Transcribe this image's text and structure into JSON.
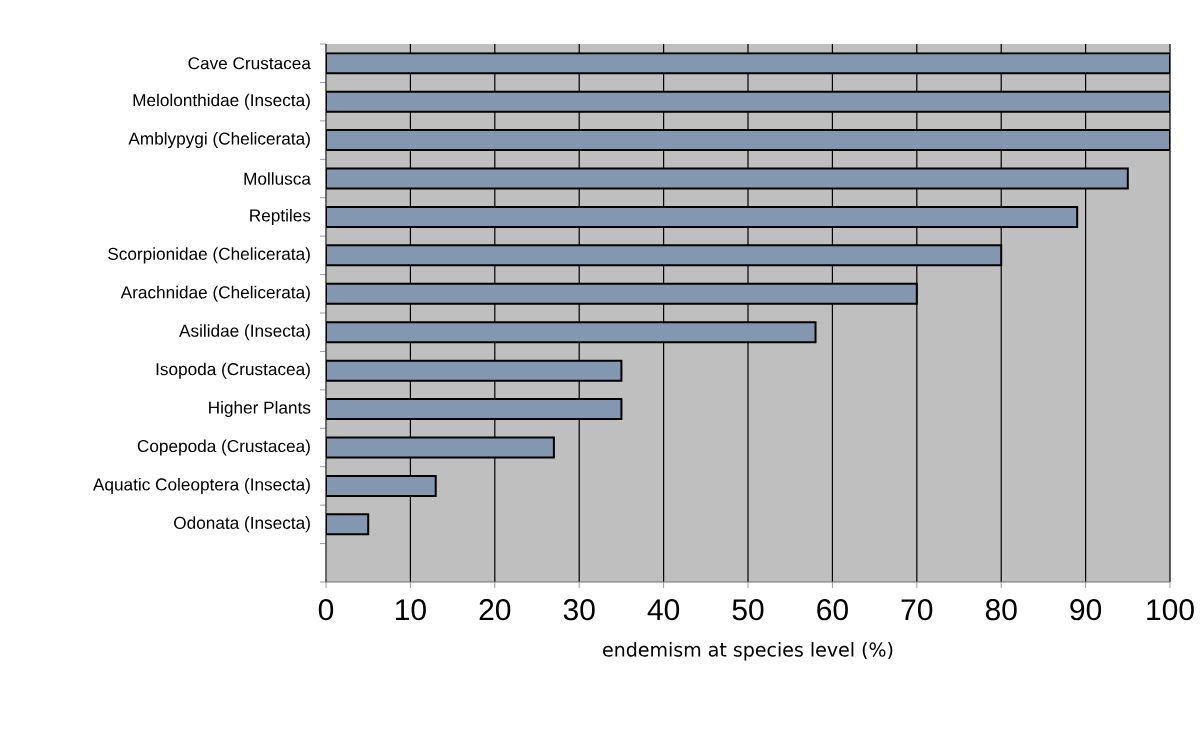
{
  "chart_data": {
    "type": "bar",
    "orientation": "horizontal",
    "categories": [
      "Cave Crustacea",
      "Melolonthidae (Insecta)",
      "Amblypygi (Chelicerata)",
      "Mollusca",
      "Reptiles",
      "Scorpionidae (Chelicerata)",
      "Arachnidae (Chelicerata)",
      "Asilidae (Insecta)",
      "Isopoda (Crustacea)",
      "Higher Plants",
      "Copepoda (Crustacea)",
      "Aquatic Coleoptera (Insecta)",
      "Odonata (Insecta)",
      null
    ],
    "values": [
      100,
      100,
      100,
      95,
      89,
      80,
      70,
      58,
      35,
      35,
      27,
      13,
      5,
      null
    ],
    "color": "#8497b0",
    "xlim": [
      0,
      100
    ],
    "xticks": [
      0,
      10,
      20,
      30,
      40,
      50,
      60,
      70,
      80,
      90,
      100
    ],
    "xlabel": "endemism at species level (%)",
    "grid": "x"
  }
}
